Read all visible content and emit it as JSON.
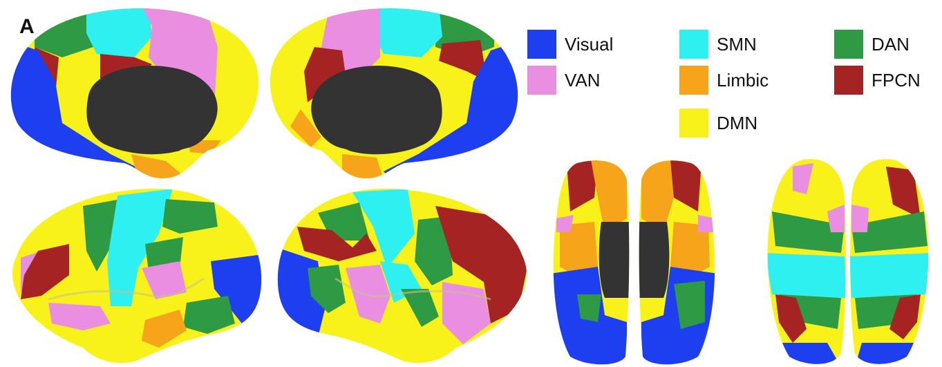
{
  "panel_label": "A",
  "legend": [
    {
      "key": "visual",
      "label": "Visual",
      "color": "#1e3ff0"
    },
    {
      "key": "smn",
      "label": "SMN",
      "color": "#2ff0f0"
    },
    {
      "key": "dan",
      "label": "DAN",
      "color": "#2e9a43"
    },
    {
      "key": "van",
      "label": "VAN",
      "color": "#e98ee0"
    },
    {
      "key": "limbic",
      "label": "Limbic",
      "color": "#f6a51a"
    },
    {
      "key": "fpcn",
      "label": "FPCN",
      "color": "#a52423"
    },
    {
      "key": "dmn",
      "label": "DMN",
      "color": "#f8f21a"
    }
  ],
  "medial_wall_color": "#333333",
  "views": [
    "left-medial",
    "right-medial",
    "left-lateral",
    "right-lateral",
    "ventral",
    "dorsal"
  ]
}
